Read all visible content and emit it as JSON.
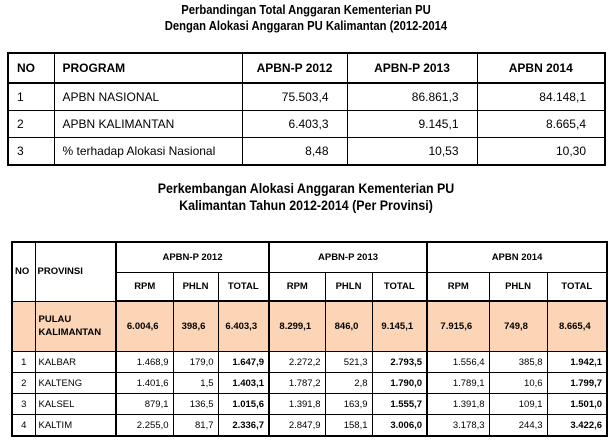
{
  "title1": {
    "line1": "Perbandingan Total Anggaran Kementerian PU",
    "line2": "Dengan Alokasi Anggaran PU Kalimantan (2012-2014"
  },
  "table1": {
    "headers": [
      "NO",
      "PROGRAM",
      "APBN-P 2012",
      "APBN-P 2013",
      "APBN 2014"
    ],
    "rows": [
      [
        "1",
        "APBN NASIONAL",
        "75.503,4",
        "86.861,3",
        "84.148,1"
      ],
      [
        "2",
        "APBN KALIMANTAN",
        "6.403,3",
        "9.145,1",
        "8.665,4"
      ],
      [
        "3",
        "% terhadap Alokasi Nasional",
        "8,48",
        "10,53",
        "10,30"
      ]
    ]
  },
  "title2": {
    "line1": "Perkembangan Alokasi Anggaran Kementerian PU",
    "line2": "Kalimantan Tahun 2012-2014 (Per Provinsi)"
  },
  "table2": {
    "no_header": "NO",
    "province_header": "PROVINSI",
    "group_headers": [
      "APBN-P 2012",
      "APBN-P 2013",
      "APBN 2014"
    ],
    "sub_headers": [
      "RPM",
      "PHLN",
      "TOTAL"
    ],
    "summary": {
      "name": "PULAU KALIMANTAN",
      "values": [
        "6.004,6",
        "398,6",
        "6.403,3",
        "8.299,1",
        "846,0",
        "9.145,1",
        "7.915,6",
        "749,8",
        "8.665,4"
      ]
    },
    "rows": [
      {
        "no": "1",
        "name": "KALBAR",
        "values": [
          "1.468,9",
          "179,0",
          "1.647,9",
          "2.272,2",
          "521,3",
          "2.793,5",
          "1.556,4",
          "385,8",
          "1.942,1"
        ]
      },
      {
        "no": "2",
        "name": "KALTENG",
        "values": [
          "1.401,6",
          "1,5",
          "1.403,1",
          "1.787,2",
          "2,8",
          "1.790,0",
          "1.789,1",
          "10,6",
          "1.799,7"
        ]
      },
      {
        "no": "3",
        "name": "KALSEL",
        "values": [
          "879,1",
          "136,5",
          "1.015,6",
          "1.391,8",
          "163,9",
          "1.555,7",
          "1.391,8",
          "109,1",
          "1.501,0"
        ]
      },
      {
        "no": "4",
        "name": "KALTIM",
        "values": [
          "2.255,0",
          "81,7",
          "2.336,7",
          "2.847,9",
          "158,1",
          "3.006,0",
          "3.178,3",
          "244,3",
          "3.422,6"
        ]
      }
    ]
  }
}
